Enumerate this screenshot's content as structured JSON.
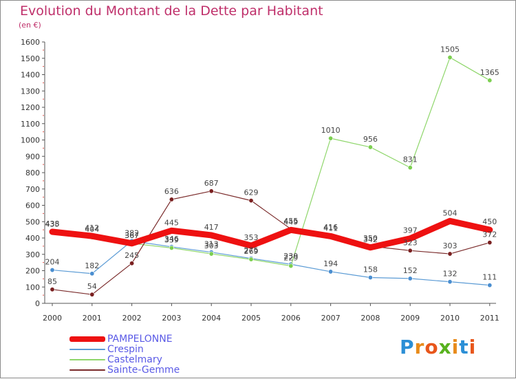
{
  "header": {
    "title": "Evolution du Montant de la Dette par Habitant",
    "subtitle": "(en €)"
  },
  "logo": {
    "text": "Proxiti",
    "letter_colors": [
      "#2b8fd6",
      "#e88b1b",
      "#e8561b",
      "#58b21e",
      "#e88b1b",
      "#2b8fd6",
      "#e8561b"
    ]
  },
  "chart_data": {
    "type": "line",
    "title": "Evolution du Montant de la Dette par Habitant",
    "subtitle": "(en €)",
    "xlabel": "",
    "ylabel": "",
    "categories": [
      "2000",
      "2001",
      "2002",
      "2003",
      "2004",
      "2005",
      "2006",
      "2007",
      "2008",
      "2009",
      "2010",
      "2011"
    ],
    "ylim": [
      0,
      1600
    ],
    "yticks": [
      0,
      100,
      200,
      300,
      400,
      500,
      600,
      700,
      800,
      900,
      1000,
      1100,
      1200,
      1300,
      1400,
      1500,
      1600
    ],
    "grid": false,
    "legend_position": "bottom-left",
    "series": [
      {
        "name": "Crespin",
        "color": "#5b9bd5",
        "marker_color": "#4a8ed0",
        "emphasis": false,
        "values": [
          204,
          182,
          382,
          346,
          313,
          275,
          239,
          194,
          158,
          152,
          132,
          111
        ]
      },
      {
        "name": "Castelmary",
        "color": "#8ed66a",
        "marker_color": "#7ccf50",
        "emphasis": false,
        "values": [
          435,
          404,
          367,
          339,
          303,
          269,
          229,
          1010,
          956,
          831,
          1505,
          1365
        ]
      },
      {
        "name": "Sainte-Gemme",
        "color": "#7a2a2a",
        "marker_color": "#7a2020",
        "emphasis": false,
        "values": [
          85,
          54,
          245,
          636,
          687,
          629,
          455,
          416,
          350,
          323,
          303,
          372
        ]
      },
      {
        "name": "PAMPELONNE",
        "color": "#ee1111",
        "marker_color": "#ee1111",
        "emphasis": true,
        "values": [
          438,
          412,
          367,
          445,
          417,
          353,
          449,
          411,
          342,
          397,
          504,
          450
        ]
      }
    ]
  }
}
